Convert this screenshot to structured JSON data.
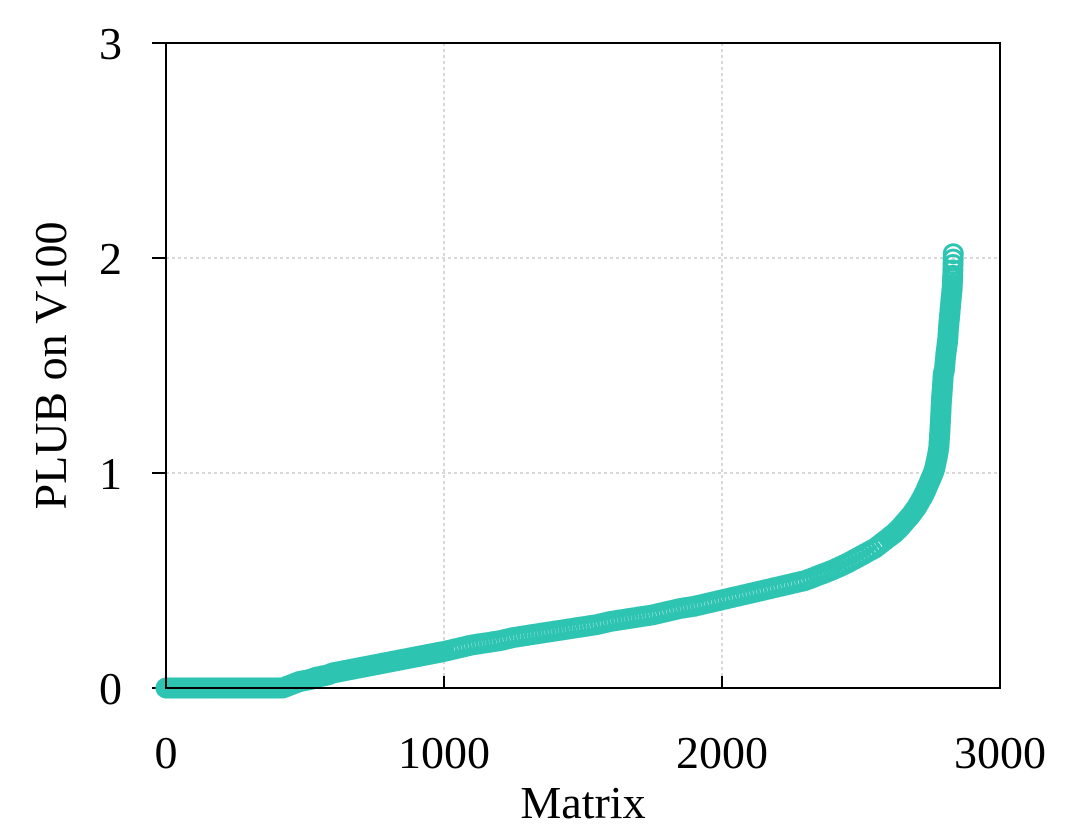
{
  "chart_data": {
    "type": "scatter",
    "title": "",
    "xlabel": "Matrix",
    "ylabel": "PLUB on V100",
    "xlim": [
      0,
      3000
    ],
    "ylim": [
      0,
      3
    ],
    "x_ticks": [
      "0",
      "1000",
      "2000",
      "3000"
    ],
    "y_ticks": [
      "0",
      "1",
      "2",
      "3"
    ],
    "grid": true,
    "legend": "none",
    "marker": "open-circle",
    "colors": {
      "series": "#2ec4b2",
      "grid": "#cccccc",
      "axis": "#000000"
    },
    "series": [
      {
        "points": [
          [
            0,
            0
          ],
          [
            20,
            0
          ],
          [
            40,
            0
          ],
          [
            60,
            0
          ],
          [
            80,
            0
          ],
          [
            100,
            0
          ],
          [
            120,
            0
          ],
          [
            140,
            0
          ],
          [
            160,
            0
          ],
          [
            180,
            0
          ],
          [
            200,
            0
          ],
          [
            220,
            0
          ],
          [
            240,
            0
          ],
          [
            260,
            0
          ],
          [
            280,
            0
          ],
          [
            300,
            0
          ],
          [
            320,
            0
          ],
          [
            340,
            0
          ],
          [
            360,
            0
          ],
          [
            380,
            0
          ],
          [
            400,
            0
          ],
          [
            420,
            0
          ],
          [
            440,
            0.01
          ],
          [
            460,
            0.02
          ],
          [
            480,
            0.03
          ],
          [
            500,
            0.035
          ],
          [
            520,
            0.04
          ],
          [
            540,
            0.05
          ],
          [
            560,
            0.055
          ],
          [
            580,
            0.06
          ],
          [
            600,
            0.07
          ],
          [
            620,
            0.075
          ],
          [
            640,
            0.08
          ],
          [
            660,
            0.085
          ],
          [
            680,
            0.09
          ],
          [
            700,
            0.095
          ],
          [
            720,
            0.1
          ],
          [
            740,
            0.105
          ],
          [
            760,
            0.11
          ],
          [
            780,
            0.115
          ],
          [
            800,
            0.12
          ],
          [
            820,
            0.125
          ],
          [
            840,
            0.13
          ],
          [
            860,
            0.135
          ],
          [
            880,
            0.14
          ],
          [
            900,
            0.145
          ],
          [
            920,
            0.15
          ],
          [
            940,
            0.155
          ],
          [
            960,
            0.16
          ],
          [
            980,
            0.165
          ],
          [
            1000,
            0.17
          ],
          [
            1050,
            0.185
          ],
          [
            1100,
            0.2
          ],
          [
            1150,
            0.21
          ],
          [
            1200,
            0.22
          ],
          [
            1250,
            0.235
          ],
          [
            1300,
            0.245
          ],
          [
            1350,
            0.255
          ],
          [
            1400,
            0.265
          ],
          [
            1450,
            0.275
          ],
          [
            1500,
            0.285
          ],
          [
            1550,
            0.295
          ],
          [
            1600,
            0.31
          ],
          [
            1650,
            0.32
          ],
          [
            1700,
            0.33
          ],
          [
            1750,
            0.34
          ],
          [
            1800,
            0.355
          ],
          [
            1850,
            0.37
          ],
          [
            1900,
            0.38
          ],
          [
            1950,
            0.395
          ],
          [
            2000,
            0.41
          ],
          [
            2050,
            0.425
          ],
          [
            2100,
            0.44
          ],
          [
            2150,
            0.455
          ],
          [
            2200,
            0.47
          ],
          [
            2250,
            0.485
          ],
          [
            2300,
            0.5
          ],
          [
            2350,
            0.525
          ],
          [
            2400,
            0.55
          ],
          [
            2450,
            0.58
          ],
          [
            2500,
            0.615
          ],
          [
            2550,
            0.65
          ],
          [
            2600,
            0.7
          ],
          [
            2620,
            0.72
          ],
          [
            2640,
            0.745
          ],
          [
            2660,
            0.775
          ],
          [
            2680,
            0.805
          ],
          [
            2700,
            0.84
          ],
          [
            2720,
            0.885
          ],
          [
            2730,
            0.91
          ],
          [
            2740,
            0.94
          ],
          [
            2750,
            0.97
          ],
          [
            2760,
            1.0
          ],
          [
            2765,
            1.02
          ],
          [
            2770,
            1.05
          ],
          [
            2775,
            1.08
          ],
          [
            2780,
            1.12
          ],
          [
            2782,
            1.16
          ],
          [
            2784,
            1.2
          ],
          [
            2786,
            1.25
          ],
          [
            2788,
            1.3
          ],
          [
            2790,
            1.35
          ],
          [
            2792,
            1.38
          ],
          [
            2794,
            1.42
          ],
          [
            2796,
            1.46
          ],
          [
            2800,
            1.48
          ],
          [
            2805,
            1.55
          ],
          [
            2810,
            1.6
          ],
          [
            2812,
            1.62
          ],
          [
            2815,
            1.68
          ],
          [
            2818,
            1.72
          ],
          [
            2820,
            1.75
          ],
          [
            2822,
            1.78
          ],
          [
            2825,
            1.82
          ],
          [
            2828,
            1.86
          ],
          [
            2830,
            1.92
          ],
          [
            2832,
            2.02
          ]
        ]
      }
    ]
  }
}
